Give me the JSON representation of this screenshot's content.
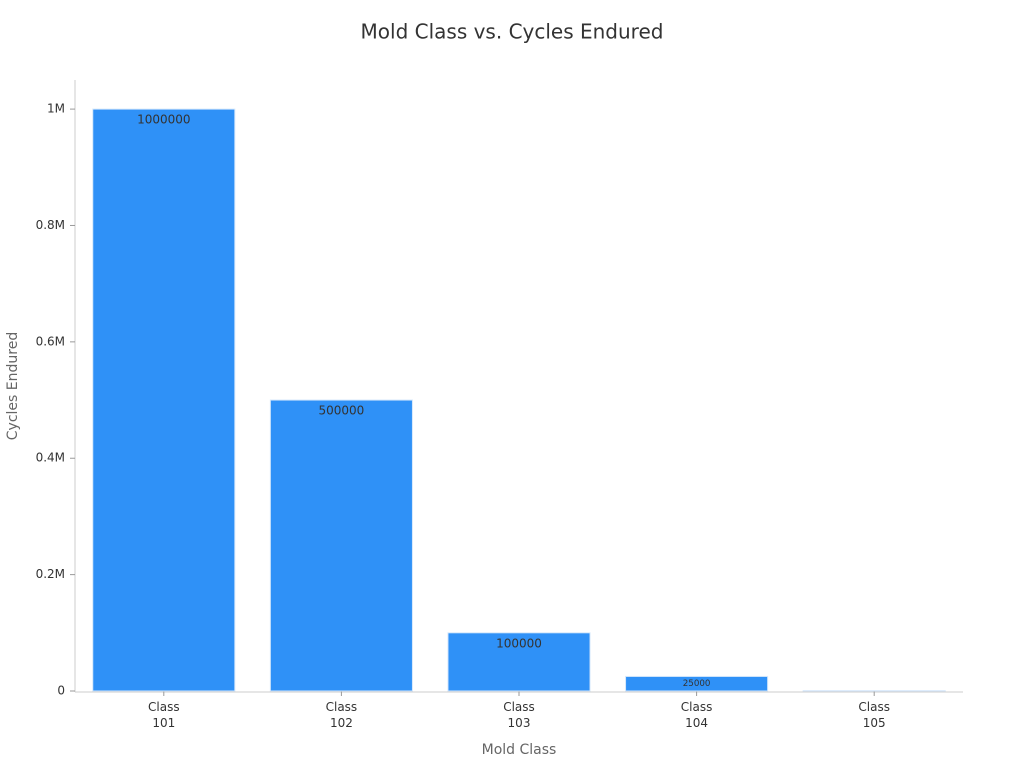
{
  "chart_data": {
    "type": "bar",
    "title": "Mold Class vs. Cycles Endured",
    "x_label": "Mold Class",
    "y_label": "Cycles Endured",
    "categories": [
      "Class 101",
      "Class 102",
      "Class 103",
      "Class 104",
      "Class 105"
    ],
    "values": [
      1000000,
      500000,
      100000,
      25000,
      500
    ],
    "color": "#2f91f7",
    "ylim": [
      0,
      1050000
    ],
    "yticks": [
      0,
      {
        "value": 200000,
        "label": "0.2M"
      },
      {
        "value": 400000,
        "label": "0.4M"
      },
      {
        "value": 600000,
        "label": "0.6M"
      },
      {
        "value": 800000,
        "label": "0.8M"
      },
      {
        "value": 1000000,
        "label": "1M"
      }
    ],
    "grid": false
  }
}
